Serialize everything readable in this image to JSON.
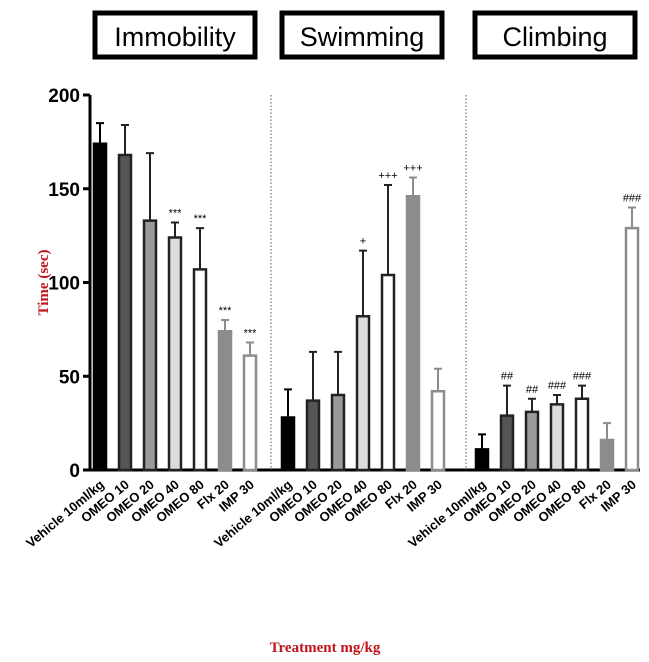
{
  "chart_data": {
    "type": "bar",
    "title": "",
    "xlabel": "Treatment mg/kg",
    "ylabel": "Time (sec)",
    "ylim": [
      0,
      200
    ],
    "yticks": [
      0,
      50,
      100,
      150,
      200
    ],
    "grid": false,
    "label_color": "#c0141c",
    "treatments": [
      "Vehicle  10ml/kg",
      "OMEO 10",
      "OMEO 20",
      "OMEO 40",
      "OMEO 80",
      "Flx 20",
      "IMP 30"
    ],
    "bar_styles": [
      {
        "fill": "#000000",
        "stroke": "#000000"
      },
      {
        "fill": "#555555",
        "stroke": "#222222"
      },
      {
        "fill": "#9a9a9a",
        "stroke": "#222222"
      },
      {
        "fill": "#dcdcdc",
        "stroke": "#222222"
      },
      {
        "fill": "#ffffff",
        "stroke": "#222222"
      },
      {
        "fill": "#8c8c8c",
        "stroke": "#8c8c8c"
      },
      {
        "fill": "#ffffff",
        "stroke": "#8c8c8c"
      }
    ],
    "groups": [
      {
        "name": "Immobility",
        "values": [
          174,
          168,
          133,
          124,
          107,
          74,
          61
        ],
        "errors": [
          11,
          16,
          36,
          8,
          22,
          6,
          7
        ],
        "annotations": [
          "",
          "",
          "",
          "***",
          "***",
          "***",
          "***"
        ]
      },
      {
        "name": "Swimming",
        "values": [
          28,
          37,
          40,
          82,
          104,
          146,
          42
        ],
        "errors": [
          15,
          26,
          23,
          35,
          48,
          10,
          12
        ],
        "annotations": [
          "",
          "",
          "",
          "+",
          "+++",
          "+++",
          ""
        ]
      },
      {
        "name": "Climbing",
        "values": [
          11,
          29,
          31,
          35,
          38,
          16,
          129
        ],
        "errors": [
          8,
          16,
          7,
          5,
          7,
          9,
          11
        ],
        "annotations": [
          "",
          "##",
          "##",
          "###",
          "###",
          "",
          "###"
        ]
      }
    ]
  }
}
